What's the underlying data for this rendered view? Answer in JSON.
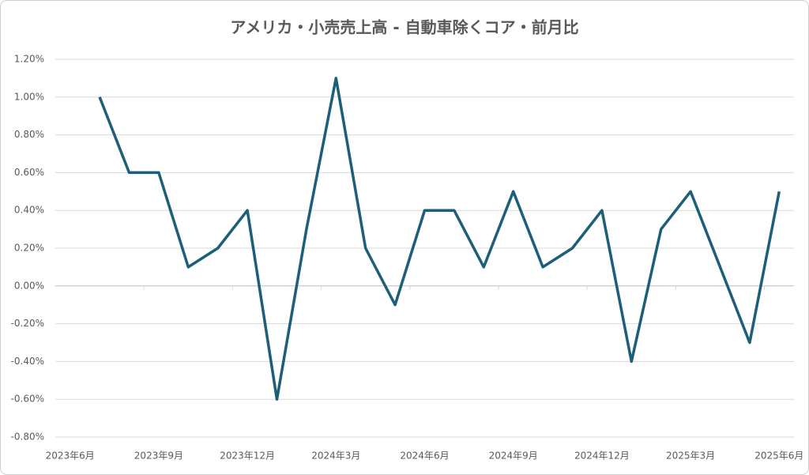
{
  "chart_data": {
    "type": "line",
    "title": "アメリカ・小売売上高 - 自動車除くコア・前月比",
    "categories": [
      "2023年6月",
      null,
      null,
      "2023年9月",
      null,
      null,
      "2023年12月",
      null,
      null,
      "2024年3月",
      null,
      null,
      "2024年6月",
      null,
      null,
      "2024年9月",
      null,
      null,
      "2024年12月",
      null,
      null,
      "2025年3月",
      null,
      null,
      "2025年6月"
    ],
    "series": [
      {
        "name": "前月比",
        "color": "#1d5e79",
        "values": [
          null,
          1.0,
          0.6,
          0.6,
          0.1,
          0.2,
          0.4,
          -0.6,
          0.3,
          1.1,
          0.2,
          -0.1,
          0.4,
          0.4,
          0.1,
          0.5,
          0.1,
          0.2,
          0.4,
          -0.4,
          0.3,
          0.5,
          0.1,
          -0.3,
          0.5
        ]
      }
    ],
    "ylim": [
      -0.8,
      1.2
    ],
    "yticks": [
      {
        "value": -0.8,
        "label": "-0.80%"
      },
      {
        "value": -0.6,
        "label": "-0.60%"
      },
      {
        "value": -0.4,
        "label": "-0.40%"
      },
      {
        "value": -0.2,
        "label": "-0.20%"
      },
      {
        "value": 0,
        "label": "0.00%"
      },
      {
        "value": 0.2,
        "label": "0.20%"
      },
      {
        "value": 0.4,
        "label": "0.40%"
      },
      {
        "value": 0.6,
        "label": "0.60%"
      },
      {
        "value": 0.8,
        "label": "0.80%"
      },
      {
        "value": 1.0,
        "label": "1.00%"
      },
      {
        "value": 1.2,
        "label": "1.20%"
      }
    ],
    "grid": true
  }
}
